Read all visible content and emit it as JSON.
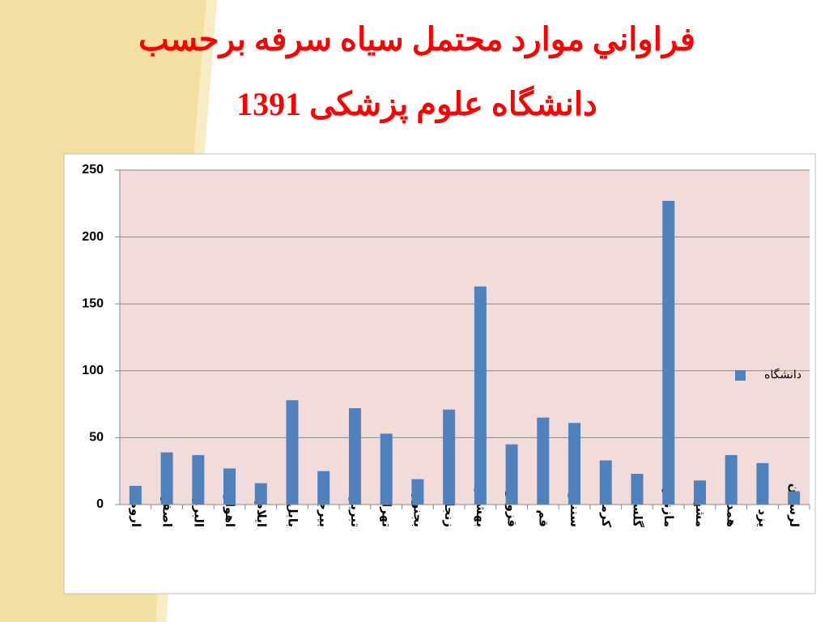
{
  "chart_data": {
    "type": "bar",
    "title": [
      "فراواني موارد محتمل سیاه سرفه برحسب",
      "دانشگاه علوم پزشکی 1391"
    ],
    "categories": [
      "ارومیه",
      "اصفهان",
      "البرز",
      "اهواز",
      "ایلام",
      "بابل",
      "بیرجند",
      "تبریز",
      "تهران",
      "بجنورد",
      "زنجان",
      "بهشتي",
      "قزوین",
      "قم",
      "سنندج",
      "کرمانشاه",
      "گلستان",
      "مازندران",
      "مشهد",
      "همدان",
      "یزد",
      "لرستان"
    ],
    "series": [
      {
        "name": "دانشگاه",
        "color": "#4f81bd",
        "values": [
          14,
          39,
          37,
          27,
          16,
          78,
          25,
          72,
          53,
          19,
          71,
          163,
          45,
          65,
          61,
          33,
          23,
          227,
          18,
          37,
          31,
          10
        ]
      }
    ],
    "ylim": [
      0,
      250
    ],
    "yticks": [
      0,
      50,
      100,
      150,
      200,
      250
    ],
    "grid": true,
    "legend": "right"
  }
}
